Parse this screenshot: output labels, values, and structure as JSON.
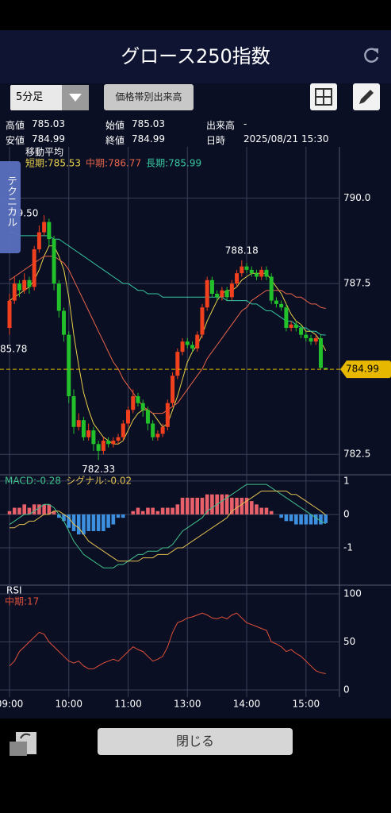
{
  "ui": {
    "title": "グロース250指数",
    "interval": "5分足",
    "volume_button": "価格帯別出来高",
    "info": [
      [
        "高値",
        "785.03"
      ],
      [
        "始値",
        "785.03"
      ],
      [
        "出来高",
        "-"
      ],
      [
        "安値",
        "784.99"
      ],
      [
        "終値",
        "784.99"
      ],
      [
        "日時",
        "2025/08/21 15:30"
      ]
    ],
    "tab": "テクニカル",
    "close_button": "閉じる"
  },
  "chart_data": [
    {
      "type": "candlestick",
      "title": "移動平均",
      "categories": [
        "09:00",
        null,
        null,
        null,
        null,
        null,
        null,
        null,
        null,
        null,
        null,
        null,
        "10:00",
        null,
        null,
        null,
        null,
        null,
        null,
        null,
        null,
        null,
        null,
        null,
        "11:00",
        null,
        null,
        null,
        null,
        null,
        null,
        null,
        null,
        null,
        null,
        null,
        "13:00",
        null,
        null,
        null,
        null,
        null,
        null,
        null,
        null,
        null,
        null,
        null,
        "14:00",
        null,
        null,
        null,
        null,
        null,
        null,
        null,
        null,
        null,
        null,
        null,
        "15:00",
        null,
        null,
        null,
        null
      ],
      "open": [
        786.2,
        787.0,
        787.5,
        787.3,
        787.6,
        787.4,
        788.5,
        789.0,
        789.3,
        788.8,
        787.5,
        786.7,
        786.0,
        784.2,
        783.3,
        783.5,
        783.0,
        783.2,
        782.8,
        782.6,
        782.9,
        782.8,
        782.9,
        783.0,
        783.4,
        783.8,
        784.2,
        784.0,
        783.8,
        783.4,
        783.0,
        783.1,
        783.3,
        784.0,
        784.8,
        785.5,
        785.8,
        785.7,
        785.6,
        786.0,
        786.8,
        787.6,
        787.2,
        787.1,
        787.3,
        787.1,
        787.5,
        787.8,
        788.0,
        787.9,
        787.8,
        787.7,
        787.9,
        787.7,
        787.0,
        786.9,
        786.8,
        786.2,
        786.3,
        786.2,
        786.0,
        785.9,
        785.8,
        785.9,
        785.03
      ],
      "high": [
        787.2,
        787.7,
        787.6,
        787.8,
        787.7,
        788.6,
        789.2,
        789.5,
        789.4,
        788.9,
        787.6,
        786.8,
        786.1,
        784.4,
        783.7,
        783.6,
        783.4,
        783.3,
        782.9,
        783.0,
        783.0,
        783.0,
        783.1,
        783.5,
        783.9,
        784.4,
        784.3,
        784.1,
        783.9,
        783.5,
        783.2,
        783.4,
        784.1,
        784.9,
        785.6,
        785.9,
        785.9,
        785.8,
        786.1,
        786.9,
        787.7,
        787.7,
        787.3,
        787.4,
        787.4,
        787.6,
        787.9,
        788.18,
        788.1,
        788.0,
        787.9,
        788.0,
        788.0,
        787.8,
        787.1,
        787.0,
        786.9,
        786.4,
        786.4,
        786.3,
        786.1,
        786.0,
        786.0,
        786.0,
        785.03
      ],
      "low": [
        786.0,
        786.9,
        787.1,
        787.2,
        787.2,
        787.3,
        788.4,
        788.9,
        788.6,
        787.3,
        786.5,
        785.8,
        784.0,
        783.1,
        783.2,
        782.9,
        782.9,
        782.6,
        782.33,
        782.5,
        782.7,
        782.7,
        782.8,
        782.9,
        783.3,
        783.7,
        783.9,
        783.6,
        783.2,
        782.9,
        782.9,
        783.0,
        783.2,
        783.9,
        784.7,
        785.4,
        785.6,
        785.5,
        785.5,
        785.9,
        786.7,
        787.1,
        787.0,
        787.0,
        787.0,
        787.0,
        787.4,
        787.7,
        787.8,
        787.7,
        787.6,
        787.6,
        787.6,
        786.9,
        786.8,
        786.7,
        786.1,
        786.1,
        786.1,
        785.9,
        785.8,
        785.7,
        785.7,
        785.0,
        784.99
      ],
      "close": [
        787.0,
        787.5,
        787.3,
        787.6,
        787.4,
        788.5,
        789.0,
        789.3,
        788.8,
        787.5,
        786.7,
        786.0,
        784.2,
        783.3,
        783.5,
        783.0,
        783.2,
        782.8,
        782.6,
        782.9,
        782.8,
        782.9,
        783.0,
        783.4,
        783.8,
        784.2,
        784.0,
        783.8,
        783.4,
        783.0,
        783.1,
        783.3,
        784.0,
        784.8,
        785.5,
        785.8,
        785.7,
        785.6,
        786.0,
        786.8,
        787.6,
        787.2,
        787.1,
        787.3,
        787.1,
        787.5,
        787.8,
        788.0,
        787.9,
        787.8,
        787.7,
        787.9,
        787.7,
        787.0,
        786.9,
        786.8,
        786.2,
        786.3,
        786.2,
        786.0,
        785.9,
        785.8,
        785.9,
        785.03,
        784.99
      ],
      "up_color": "#f0401e",
      "down_color": "#22c02a",
      "series": [
        {
          "name": "短期:785.53",
          "color": "#e8d04a",
          "values": [
            787.0,
            787.1,
            787.2,
            787.3,
            787.4,
            787.6,
            787.9,
            788.3,
            788.6,
            788.6,
            788.3,
            787.9,
            787.1,
            786.0,
            785.1,
            784.3,
            783.8,
            783.4,
            783.2,
            783.0,
            782.9,
            782.8,
            782.8,
            782.9,
            783.2,
            783.5,
            783.7,
            783.8,
            783.8,
            783.7,
            783.5,
            783.3,
            783.4,
            783.8,
            784.2,
            784.7,
            785.2,
            785.5,
            785.7,
            786.0,
            786.4,
            786.7,
            787.0,
            787.2,
            787.3,
            787.3,
            787.4,
            787.6,
            787.7,
            787.8,
            787.8,
            787.8,
            787.8,
            787.6,
            787.4,
            787.2,
            786.9,
            786.6,
            786.4,
            786.3,
            786.1,
            786.1,
            786.0,
            785.8,
            785.53
          ]
        },
        {
          "name": "中期:786.77",
          "color": "#e8654a",
          "values": [
            787.6,
            787.7,
            787.8,
            787.9,
            788.0,
            788.1,
            788.2,
            788.3,
            788.3,
            788.3,
            788.2,
            788.1,
            787.9,
            787.6,
            787.3,
            787.0,
            786.7,
            786.4,
            786.1,
            785.8,
            785.5,
            785.2,
            785.0,
            784.7,
            784.5,
            784.3,
            784.1,
            783.9,
            783.8,
            783.7,
            783.7,
            783.7,
            783.8,
            783.9,
            784.0,
            784.2,
            784.4,
            784.6,
            784.8,
            785.0,
            785.3,
            785.5,
            785.7,
            785.9,
            786.1,
            786.3,
            786.5,
            786.7,
            786.8,
            787.0,
            787.1,
            787.2,
            787.3,
            787.3,
            787.3,
            787.3,
            787.2,
            787.2,
            787.1,
            787.1,
            787.0,
            786.9,
            786.9,
            786.8,
            786.77
          ]
        },
        {
          "name": "長期:785.99",
          "color": "#35c8a0",
          "values": [
            789.0,
            789.0,
            788.9,
            788.9,
            788.9,
            788.9,
            788.9,
            788.9,
            788.9,
            788.8,
            788.8,
            788.7,
            788.6,
            788.5,
            788.4,
            788.3,
            788.2,
            788.1,
            788.0,
            787.9,
            787.8,
            787.7,
            787.6,
            787.5,
            787.5,
            787.4,
            787.3,
            787.3,
            787.2,
            787.2,
            787.2,
            787.1,
            787.1,
            787.1,
            787.1,
            787.1,
            787.1,
            787.1,
            787.1,
            787.1,
            787.1,
            787.1,
            787.1,
            787.1,
            787.0,
            787.0,
            787.0,
            787.0,
            787.0,
            786.9,
            786.9,
            786.8,
            786.7,
            786.7,
            786.6,
            786.5,
            786.4,
            786.4,
            786.3,
            786.2,
            786.2,
            786.1,
            786.1,
            786.0,
            785.99
          ]
        }
      ],
      "annotations": [
        "79.50",
        "85.78"
      ],
      "current_price": 784.99,
      "current_color": "#e6b800",
      "ylim": [
        781.9,
        791.5
      ],
      "yticks": [
        {
          "value": 790,
          "label": "790.0"
        },
        787.5,
        782.5
      ],
      "grid": true
    },
    {
      "type": "macd",
      "ylim": [
        -2.07,
        1.14
      ],
      "yticks": [
        1,
        0,
        -1
      ],
      "grid": true,
      "histogram": {
        "pos_color": "#e8606a",
        "neg_color": "#3d8fe0",
        "values": [
          0.1,
          0.2,
          0.2,
          0.3,
          0.2,
          0.3,
          0.3,
          0.3,
          0.3,
          0.1,
          -0.1,
          -0.2,
          -0.4,
          -0.5,
          -0.6,
          -0.6,
          -0.5,
          -0.5,
          -0.5,
          -0.5,
          -0.4,
          -0.3,
          -0.1,
          -0.1,
          0.0,
          0.1,
          0.2,
          0.1,
          0.2,
          0.2,
          0.1,
          0.2,
          0.2,
          0.2,
          0.3,
          0.5,
          0.5,
          0.5,
          0.5,
          0.5,
          0.6,
          0.6,
          0.6,
          0.6,
          0.6,
          0.5,
          0.5,
          0.5,
          0.5,
          0.4,
          0.3,
          0.2,
          0.2,
          0.1,
          0.0,
          -0.1,
          -0.2,
          -0.2,
          -0.3,
          -0.3,
          -0.3,
          -0.3,
          -0.3,
          -0.3,
          -0.26
        ]
      },
      "series": [
        {
          "name": "MACD:-0.28",
          "color": "#3fc08a",
          "values": [
            -0.3,
            -0.2,
            -0.1,
            0.0,
            0.0,
            0.1,
            0.2,
            0.3,
            0.3,
            0.2,
            0.0,
            -0.2,
            -0.5,
            -0.8,
            -1.0,
            -1.2,
            -1.3,
            -1.4,
            -1.5,
            -1.6,
            -1.6,
            -1.6,
            -1.5,
            -1.5,
            -1.4,
            -1.3,
            -1.2,
            -1.2,
            -1.1,
            -1.1,
            -1.1,
            -1.0,
            -1.0,
            -0.9,
            -0.7,
            -0.5,
            -0.4,
            -0.3,
            -0.2,
            -0.1,
            0.1,
            0.2,
            0.3,
            0.4,
            0.5,
            0.6,
            0.7,
            0.8,
            0.9,
            0.9,
            0.9,
            0.9,
            0.9,
            0.8,
            0.7,
            0.6,
            0.5,
            0.4,
            0.3,
            0.2,
            0.1,
            0.0,
            -0.1,
            -0.2,
            -0.28
          ]
        },
        {
          "name": "シグナル:-0.02",
          "color": "#e0c050",
          "values": [
            -0.4,
            -0.4,
            -0.3,
            -0.3,
            -0.2,
            -0.2,
            -0.1,
            0.0,
            0.0,
            0.1,
            0.1,
            0.0,
            -0.1,
            -0.3,
            -0.4,
            -0.6,
            -0.8,
            -0.9,
            -1.0,
            -1.1,
            -1.2,
            -1.3,
            -1.4,
            -1.4,
            -1.4,
            -1.4,
            -1.4,
            -1.3,
            -1.3,
            -1.3,
            -1.2,
            -1.2,
            -1.2,
            -1.1,
            -1.0,
            -1.0,
            -0.9,
            -0.8,
            -0.7,
            -0.6,
            -0.5,
            -0.4,
            -0.3,
            -0.2,
            -0.1,
            0.1,
            0.2,
            0.3,
            0.4,
            0.5,
            0.6,
            0.7,
            0.7,
            0.7,
            0.7,
            0.7,
            0.7,
            0.6,
            0.6,
            0.5,
            0.4,
            0.3,
            0.2,
            0.1,
            -0.02
          ]
        }
      ]
    },
    {
      "type": "line",
      "title": "RSI",
      "ylim": [
        -7.4,
        106.6
      ],
      "yticks": [
        100,
        50,
        0
      ],
      "grid": true,
      "series": [
        {
          "name": "中期:17",
          "color": "#e0503a",
          "values": [
            25,
            30,
            40,
            45,
            50,
            55,
            60,
            58,
            50,
            45,
            40,
            35,
            30,
            28,
            30,
            25,
            22,
            22,
            25,
            28,
            30,
            32,
            30,
            35,
            40,
            45,
            42,
            40,
            35,
            30,
            32,
            35,
            45,
            60,
            70,
            72,
            75,
            76,
            78,
            80,
            78,
            75,
            74,
            76,
            74,
            78,
            80,
            75,
            70,
            68,
            66,
            64,
            62,
            50,
            48,
            45,
            40,
            42,
            38,
            35,
            30,
            25,
            20,
            18,
            17
          ]
        }
      ]
    }
  ]
}
